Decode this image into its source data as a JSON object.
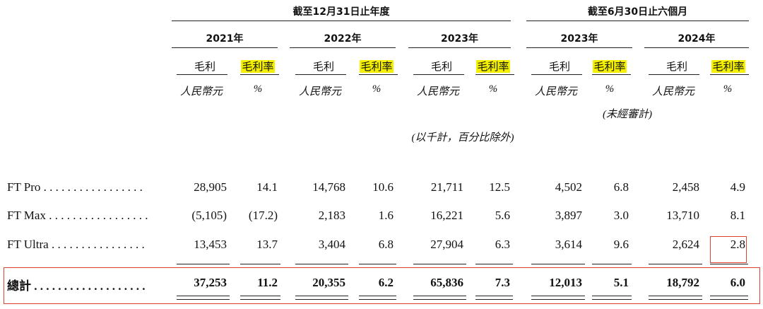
{
  "period_headers": [
    "截至12月31日止年度",
    "截至6月30日止六個月"
  ],
  "years": [
    "2021年",
    "2022年",
    "2023年",
    "2023年",
    "2024年"
  ],
  "col_headers": [
    "毛利",
    "毛利率"
  ],
  "units": [
    "人民幣元",
    "%"
  ],
  "unaudited": "(未經審計)",
  "note": "(以千計，百分比除外)",
  "rows": [
    {
      "label": "FT Pro . . . . . . . . . . . . . . . . .",
      "values": [
        "28,905",
        "14.1",
        "14,768",
        "10.6",
        "21,711",
        "12.5",
        "4,502",
        "6.8",
        "2,458",
        "4.9"
      ]
    },
    {
      "label": "FT Max . . . . . . . . . . . . . . . . .",
      "values": [
        "(5,105)",
        "(17.2)",
        "2,183",
        "1.6",
        "16,221",
        "5.6",
        "3,897",
        "3.0",
        "13,710",
        "8.1"
      ]
    },
    {
      "label": "FT Ultra . . . . . . . . . . . . . . . .",
      "values": [
        "13,453",
        "13.7",
        "3,404",
        "6.8",
        "27,904",
        "6.3",
        "3,614",
        "9.6",
        "2,624",
        "2.8"
      ]
    }
  ],
  "total": {
    "label": "總計 . . . . . . . . . . . . . . . . . . .",
    "values": [
      "37,253",
      "11.2",
      "20,355",
      "6.2",
      "65,836",
      "7.3",
      "12,013",
      "5.1",
      "18,792",
      "6.0"
    ]
  },
  "colors": {
    "highlight": "#f4f000",
    "annotation_box": "#e0402f"
  }
}
